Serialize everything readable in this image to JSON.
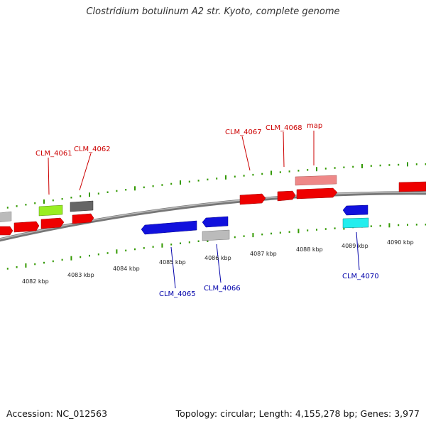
{
  "title": "Clostridium botulinum A2 str. Kyoto, complete genome",
  "colors": {
    "forward_gene": "#ff0000",
    "reverse_gene": "#0000ff",
    "forward_label": "#cc0000",
    "reverse_label": "#0000aa",
    "tick": "#339900",
    "backbone": "#888888"
  },
  "scale_labels": [
    "4082 kbp",
    "4083 kbp",
    "4084 kbp",
    "4085 kbp",
    "4086 kbp",
    "4087 kbp",
    "4088 kbp",
    "4089 kbp",
    "4090 kbp"
  ],
  "forward_gene_labels": [
    "CLM_4061",
    "CLM_4062",
    "CLM_4067",
    "CLM_4068",
    "map"
  ],
  "reverse_gene_labels": [
    "CLM_4065",
    "CLM_4066",
    "CLM_4070"
  ],
  "footer": {
    "accession": "Accession: NC_012563",
    "summary": "Topology: circular; Length: 4,155,278 bp; Genes: 3,977"
  }
}
